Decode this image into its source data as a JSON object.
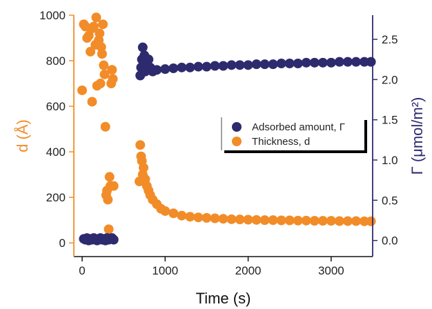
{
  "chart_data": {
    "type": "scatter",
    "xlabel": "Time (s)",
    "ylabel_left": "d (Å)",
    "ylabel_right": "Γ (μmol/m²)",
    "xlim": [
      -100,
      3500
    ],
    "ylim_left": [
      -60,
      1000
    ],
    "ylim_right": [
      -0.2,
      2.8
    ],
    "x_ticks": [
      0,
      1000,
      2000,
      3000
    ],
    "y_left_ticks": [
      0,
      200,
      400,
      600,
      800,
      1000
    ],
    "y_right_ticks": [
      0.0,
      0.5,
      1.0,
      1.5,
      2.0,
      2.5
    ],
    "grid": false,
    "legend_position": "center-right",
    "colors": {
      "gamma": "#2e2a6e",
      "d": "#f28c28",
      "left_axis": "#f28c28",
      "right_axis": "#2e2a6e"
    },
    "series": [
      {
        "name": "Adsorbed amount, Γ",
        "axis": "right",
        "color": "#2e2a6e",
        "points": [
          [
            20,
            0.02
          ],
          [
            40,
            0.01
          ],
          [
            60,
            0.03
          ],
          [
            80,
            0.0
          ],
          [
            100,
            0.02
          ],
          [
            120,
            0.01
          ],
          [
            140,
            0.03
          ],
          [
            160,
            0.02
          ],
          [
            180,
            0.0
          ],
          [
            200,
            0.02
          ],
          [
            220,
            0.03
          ],
          [
            240,
            0.01
          ],
          [
            260,
            0.02
          ],
          [
            280,
            0.0
          ],
          [
            300,
            0.03
          ],
          [
            320,
            0.01
          ],
          [
            340,
            0.02
          ],
          [
            360,
            0.03
          ],
          [
            380,
            0.01
          ],
          [
            700,
            2.05
          ],
          [
            710,
            2.15
          ],
          [
            720,
            2.25
          ],
          [
            730,
            2.4
          ],
          [
            740,
            2.2
          ],
          [
            750,
            2.3
          ],
          [
            760,
            2.1
          ],
          [
            780,
            2.2
          ],
          [
            800,
            2.25
          ],
          [
            820,
            2.15
          ],
          [
            850,
            2.1
          ],
          [
            900,
            2.12
          ],
          [
            1000,
            2.13
          ],
          [
            1100,
            2.14
          ],
          [
            1200,
            2.15
          ],
          [
            1300,
            2.15
          ],
          [
            1400,
            2.16
          ],
          [
            1500,
            2.16
          ],
          [
            1600,
            2.17
          ],
          [
            1700,
            2.17
          ],
          [
            1800,
            2.18
          ],
          [
            1900,
            2.18
          ],
          [
            2000,
            2.18
          ],
          [
            2100,
            2.19
          ],
          [
            2200,
            2.19
          ],
          [
            2300,
            2.19
          ],
          [
            2400,
            2.2
          ],
          [
            2500,
            2.2
          ],
          [
            2600,
            2.2
          ],
          [
            2700,
            2.21
          ],
          [
            2800,
            2.21
          ],
          [
            2900,
            2.21
          ],
          [
            3000,
            2.21
          ],
          [
            3100,
            2.22
          ],
          [
            3200,
            2.22
          ],
          [
            3300,
            2.22
          ],
          [
            3400,
            2.22
          ],
          [
            3480,
            2.22
          ]
        ]
      },
      {
        "name": "Thickness, d",
        "axis": "left",
        "color": "#f28c28",
        "points": [
          [
            0,
            670
          ],
          [
            20,
            960
          ],
          [
            40,
            950
          ],
          [
            60,
            900
          ],
          [
            80,
            910
          ],
          [
            100,
            840
          ],
          [
            110,
            940
          ],
          [
            120,
            620
          ],
          [
            140,
            950
          ],
          [
            160,
            870
          ],
          [
            170,
            990
          ],
          [
            180,
            690
          ],
          [
            200,
            890
          ],
          [
            210,
            920
          ],
          [
            220,
            700
          ],
          [
            230,
            860
          ],
          [
            240,
            830
          ],
          [
            250,
            960
          ],
          [
            260,
            780
          ],
          [
            270,
            740
          ],
          [
            280,
            510
          ],
          [
            290,
            210
          ],
          [
            300,
            230
          ],
          [
            310,
            190
          ],
          [
            320,
            60
          ],
          [
            330,
            290
          ],
          [
            340,
            250
          ],
          [
            350,
            700
          ],
          [
            360,
            760
          ],
          [
            370,
            720
          ],
          [
            380,
            250
          ],
          [
            690,
            270
          ],
          [
            700,
            430
          ],
          [
            710,
            380
          ],
          [
            720,
            360
          ],
          [
            730,
            300
          ],
          [
            740,
            330
          ],
          [
            750,
            270
          ],
          [
            760,
            280
          ],
          [
            780,
            250
          ],
          [
            800,
            230
          ],
          [
            820,
            210
          ],
          [
            850,
            190
          ],
          [
            900,
            170
          ],
          [
            950,
            150
          ],
          [
            1000,
            140
          ],
          [
            1100,
            130
          ],
          [
            1200,
            120
          ],
          [
            1300,
            115
          ],
          [
            1400,
            112
          ],
          [
            1500,
            110
          ],
          [
            1600,
            108
          ],
          [
            1700,
            106
          ],
          [
            1800,
            104
          ],
          [
            1900,
            103
          ],
          [
            2000,
            102
          ],
          [
            2100,
            101
          ],
          [
            2200,
            100
          ],
          [
            2300,
            100
          ],
          [
            2400,
            99
          ],
          [
            2500,
            99
          ],
          [
            2600,
            98
          ],
          [
            2700,
            98
          ],
          [
            2800,
            97
          ],
          [
            2900,
            97
          ],
          [
            3000,
            97
          ],
          [
            3100,
            96
          ],
          [
            3200,
            96
          ],
          [
            3300,
            96
          ],
          [
            3400,
            95
          ],
          [
            3480,
            95
          ]
        ]
      }
    ]
  }
}
